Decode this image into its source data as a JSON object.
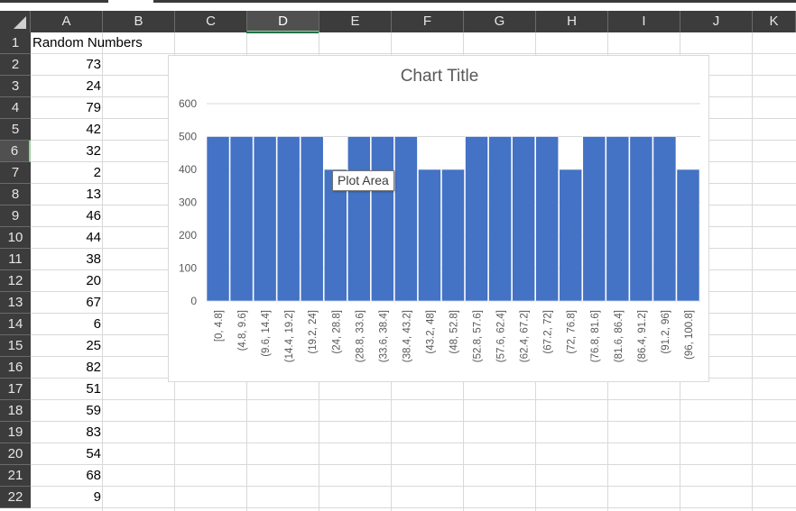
{
  "spreadsheet": {
    "columns": [
      "A",
      "B",
      "C",
      "D",
      "E",
      "F",
      "G",
      "H",
      "I",
      "J",
      "K"
    ],
    "selected_column": "D",
    "rows": [
      "1",
      "2",
      "3",
      "4",
      "5",
      "6",
      "7",
      "8",
      "9",
      "10",
      "11",
      "12",
      "13",
      "14",
      "15",
      "16",
      "17",
      "18",
      "19",
      "20",
      "21",
      "22"
    ],
    "selected_row": "6",
    "a1_text": "Random Numbers",
    "column_a_values": [
      "73",
      "24",
      "79",
      "42",
      "32",
      "2",
      "13",
      "46",
      "44",
      "38",
      "20",
      "67",
      "6",
      "25",
      "82",
      "51",
      "59",
      "83",
      "54",
      "68",
      "9"
    ]
  },
  "chart": {
    "title": "Chart Title",
    "tooltip": "Plot Area",
    "bar_color": "#4472c4"
  },
  "chart_data": {
    "type": "bar",
    "title": "Chart Title",
    "xlabel": "",
    "ylabel": "",
    "ylim": [
      0,
      600
    ],
    "yticks": [
      "0",
      "100",
      "200",
      "300",
      "400",
      "500",
      "600"
    ],
    "grid": true,
    "legend": "none",
    "categories": [
      "[0, 4.8]",
      "(4.8, 9.6]",
      "(9.6, 14.4]",
      "(14.4, 19.2]",
      "(19.2, 24]",
      "(24, 28.8]",
      "(28.8, 33.6]",
      "(33.6, 38.4]",
      "(38.4, 43.2]",
      "(43.2, 48]",
      "(48, 52.8]",
      "(52.8, 57.6]",
      "(57.6, 62.4]",
      "(62.4, 67.2]",
      "(67.2, 72]",
      "(72, 76.8]",
      "(76.8, 81.6]",
      "(81.6, 86.4]",
      "(86.4, 91.2]",
      "(91.2, 96]",
      "(96, 100.8]"
    ],
    "values": [
      500,
      500,
      500,
      500,
      500,
      400,
      500,
      500,
      500,
      400,
      400,
      500,
      500,
      500,
      500,
      400,
      500,
      500,
      500,
      500,
      400
    ]
  }
}
